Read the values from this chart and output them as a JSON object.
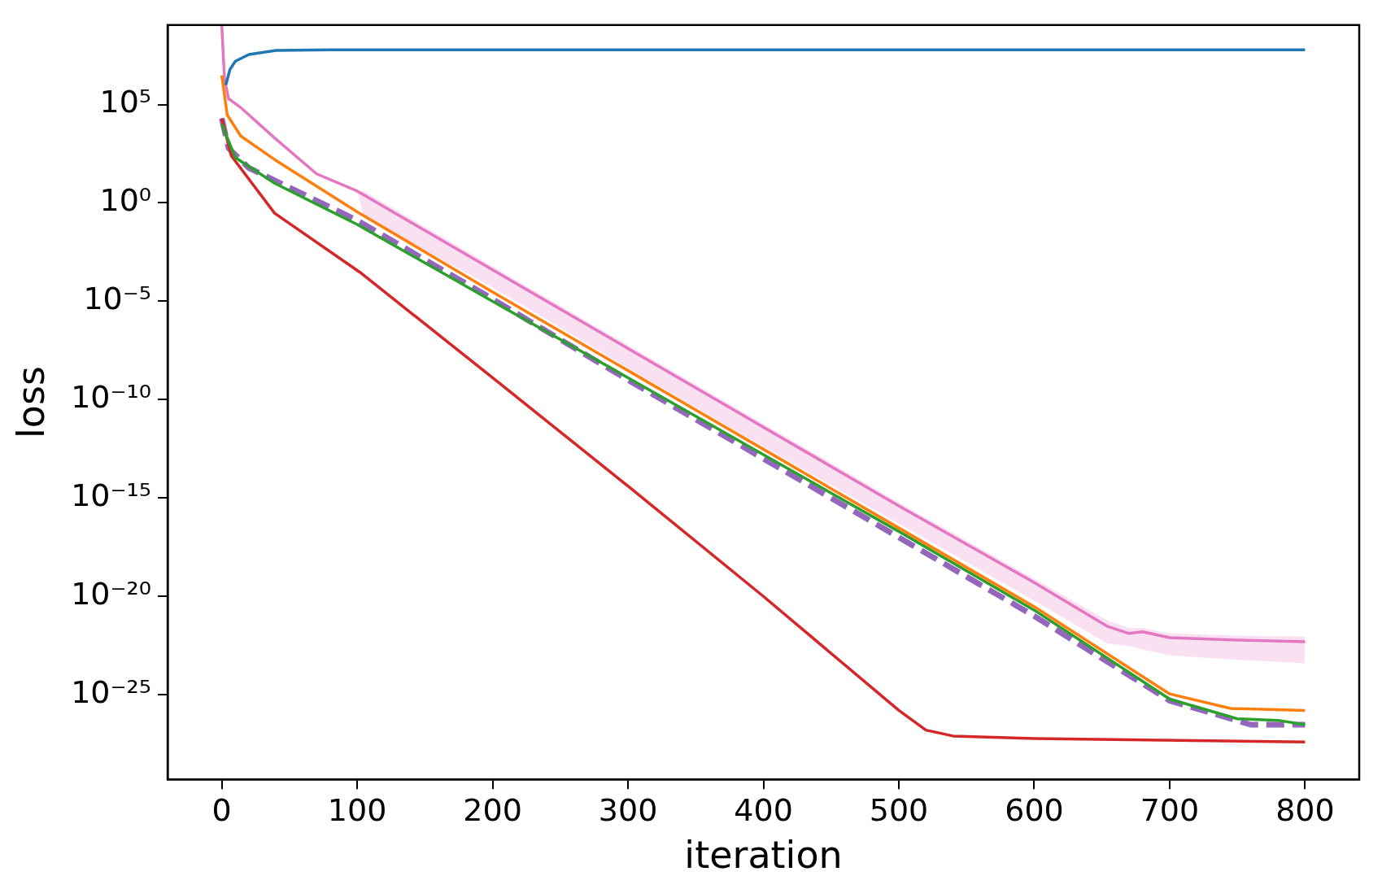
{
  "chart_data": {
    "type": "line",
    "xlabel": "iteration",
    "ylabel": "loss",
    "log": "y",
    "grid": false,
    "legend": false,
    "marker": "none",
    "xlim": [
      -40,
      840
    ],
    "xticks": [
      0,
      100,
      200,
      300,
      400,
      500,
      600,
      700,
      800
    ],
    "ylim": [
      5e-30,
      1100000000.0
    ],
    "yticks": [
      {
        "value": 100000.0,
        "label": "10⁵"
      },
      {
        "value": 1,
        "label": "10⁰"
      },
      {
        "value": 1e-05,
        "label": "10⁻⁵"
      },
      {
        "value": 1e-10,
        "label": "10⁻¹⁰"
      },
      {
        "value": 1e-15,
        "label": "10⁻¹⁵"
      },
      {
        "value": 1e-20,
        "label": "10⁻²⁰"
      },
      {
        "value": 1e-25,
        "label": "10⁻²⁵"
      }
    ],
    "series": [
      {
        "color": "#1f77b4",
        "x": [
          3,
          6,
          10,
          20,
          40,
          80,
          800
        ],
        "values": [
          1000000.0,
          6000000.0,
          16000000.0,
          35000000.0,
          56000000.0,
          60000000.0,
          60000000.0
        ]
      },
      {
        "color": "#ff7f0e",
        "x": [
          0,
          4,
          14,
          39,
          100,
          200,
          300,
          400,
          500,
          600,
          700,
          745,
          800
        ],
        "values": [
          3000000.0,
          30000.0,
          2500.0,
          160,
          0.35,
          3e-05,
          3e-09,
          3e-13,
          3e-17,
          3e-21,
          1.1e-25,
          2e-26,
          1.6e-26
        ]
      },
      {
        "color": "#2ca02c",
        "x": [
          0,
          10,
          39,
          100,
          200,
          300,
          400,
          500,
          600,
          700,
          750,
          780,
          800
        ],
        "values": [
          10000.0,
          200,
          10,
          0.08,
          1e-05,
          1.3e-09,
          1.6e-13,
          2e-17,
          2e-21,
          6e-26,
          6e-27,
          5e-27,
          3e-27
        ]
      },
      {
        "color": "#d62728",
        "x": [
          0,
          7,
          39,
          102,
          200,
          300,
          400,
          500,
          520,
          540,
          600,
          800
        ],
        "values": [
          20000.0,
          250,
          0.3,
          0.0003,
          1.3e-09,
          4e-15,
          1e-20,
          1.6e-26,
          1.6e-27,
          8e-28,
          6e-28,
          4e-28
        ]
      },
      {
        "color": "#9467bd",
        "line_style": "dashed",
        "x": [
          0,
          5,
          20,
          100,
          200,
          300,
          400,
          500,
          600,
          700,
          760,
          800
        ],
        "values": [
          20000.0,
          600,
          60,
          0.13,
          1.3e-05,
          1e-09,
          1e-13,
          1e-17,
          1e-21,
          5e-26,
          3e-27,
          3e-27
        ]
      },
      {
        "color": "#e377c2",
        "x": [
          0,
          2,
          5,
          14,
          39,
          70,
          100,
          105,
          200,
          300,
          400,
          500,
          600,
          654,
          670,
          680,
          700,
          750,
          800
        ],
        "values": [
          1000000000.0,
          2000000.0,
          200000.0,
          70000.0,
          2000.0,
          30,
          4,
          2.5,
          0.0004,
          4e-08,
          4e-12,
          4e-16,
          5e-20,
          3e-22,
          1.3e-22,
          1.6e-22,
          8e-23,
          6e-23,
          5e-23
        ],
        "lower": [
          null,
          null,
          null,
          null,
          null,
          null,
          4,
          0.2,
          5e-05,
          4e-09,
          4e-13,
          5e-17,
          6e-21,
          4e-23,
          3e-23,
          2e-23,
          1e-23,
          6e-24,
          4e-24
        ],
        "upper": [
          null,
          null,
          null,
          null,
          null,
          null,
          4,
          4,
          0.0006,
          6e-08,
          6e-12,
          6e-16,
          8e-20,
          6e-22,
          2.5e-22,
          2.5e-22,
          1.3e-22,
          1e-22,
          9e-23
        ]
      }
    ]
  }
}
